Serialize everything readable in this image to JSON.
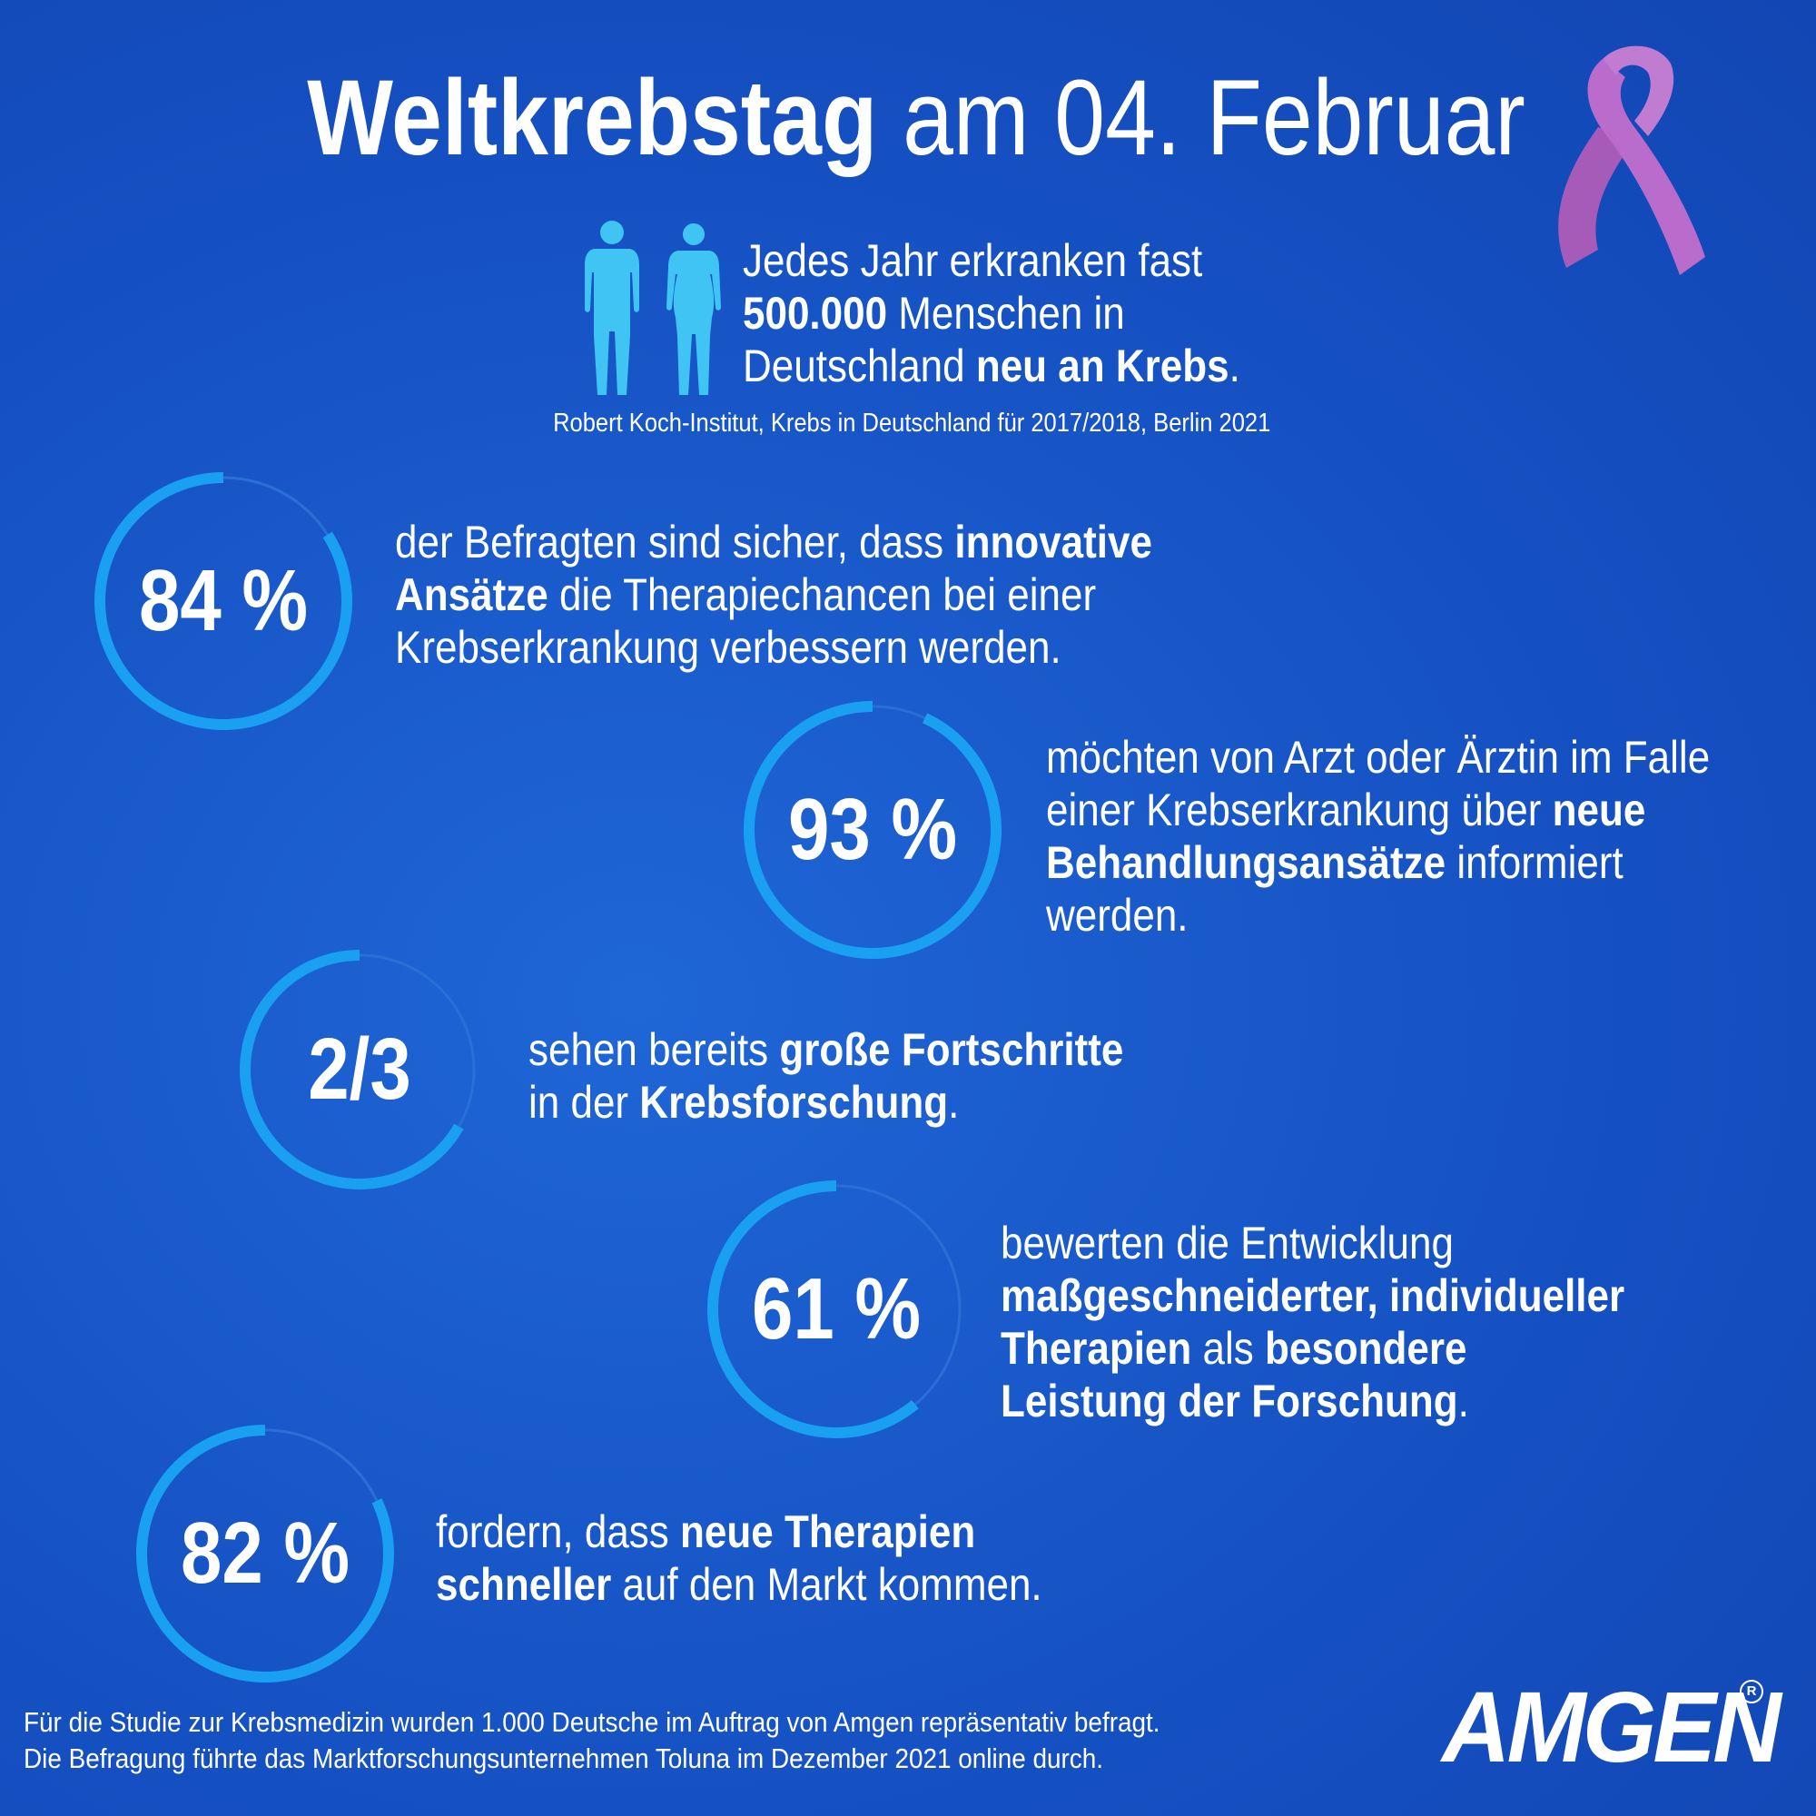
{
  "title": {
    "bold": "Weltkrebstag",
    "rest": "am 04. Februar"
  },
  "icons": {
    "ribbon": "awareness-ribbon-icon",
    "people": "man-woman-silhouette-icon"
  },
  "intro": {
    "l1": "Jedes Jahr erkranken fast",
    "l2_bold": "500.000",
    "l2_rest": " Menschen in",
    "l3_pre": "Deutschland ",
    "l3_bold": "neu an Krebs",
    "l3_post": "."
  },
  "source": "Robert Koch-Institut, Krebs in Deutschland für 2017/2018, Berlin 2021",
  "stats": [
    {
      "value": "84 %",
      "fraction": 0.84,
      "l1_pre": "der Befragten sind sicher, dass ",
      "l1_bold": "innovative",
      "l2_bold": "Ansätze",
      "l2_post": " die Therapiechancen bei einer",
      "l3": "Krebserkrankung verbessern werden."
    },
    {
      "value": "93 %",
      "fraction": 0.93,
      "l1": "möchten von Arzt oder Ärztin im Falle",
      "l2_pre": "einer Krebserkrankung über ",
      "l2_bold": "neue",
      "l3_bold": "Behandlungsansätze",
      "l3_post": " informiert",
      "l4": "werden."
    },
    {
      "value": "2/3",
      "fraction": 0.667,
      "l1_pre": "sehen bereits ",
      "l1_bold": "große Fortschritte",
      "l2_pre": "in der ",
      "l2_bold": "Krebsforschung",
      "l2_post": "."
    },
    {
      "value": "61 %",
      "fraction": 0.61,
      "l1": "bewerten die Entwicklung",
      "l2_bold": "maßgeschneiderter, individueller",
      "l3_bold": "Therapien",
      "l3_mid": " als ",
      "l3_bold2": "besondere",
      "l4_bold": "Leistung der Forschung",
      "l4_post": "."
    },
    {
      "value": "82 %",
      "fraction": 0.82,
      "l1_pre": "fordern, dass ",
      "l1_bold": "neue Therapien",
      "l2_bold": "schneller",
      "l2_post": " auf den Markt kommen."
    }
  ],
  "footer": {
    "l1": "Für die Studie zur Krebsmedizin wurden 1.000 Deutsche im Auftrag von Amgen repräsentativ befragt.",
    "l2": "Die Befragung führte das Marktforschungsunternehmen Toluna im Dezember 2021 online durch."
  },
  "logo": {
    "text": "AMGEN",
    "reg": "R"
  },
  "colors": {
    "ring": "#1aa0f2",
    "ring_track": "#2a6fd6",
    "ribbon": "#b266c4",
    "people": "#3fc4f4"
  }
}
